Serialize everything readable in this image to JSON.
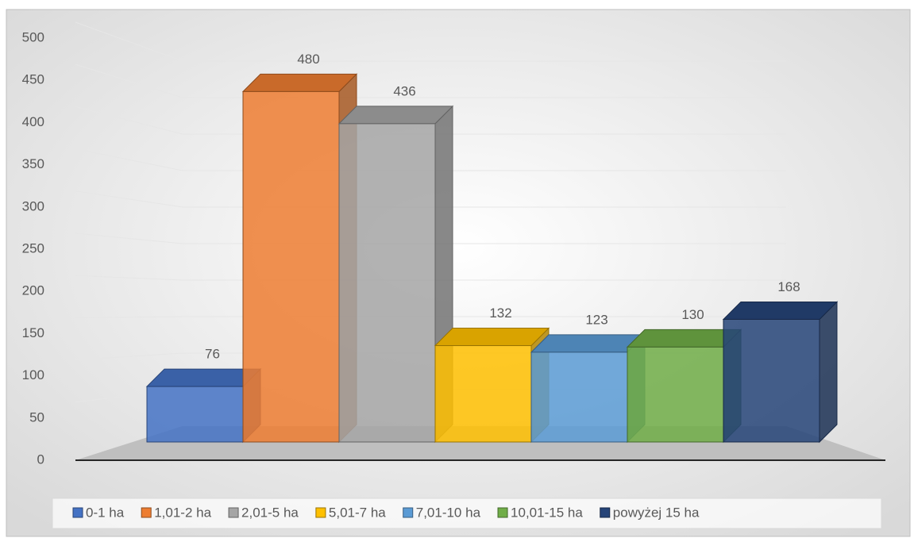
{
  "chart_data": {
    "type": "bar3d",
    "series": [
      {
        "name": "0-1 ha",
        "color": "#4472c4",
        "values": [
          76
        ]
      },
      {
        "name": "1,01-2 ha",
        "color": "#ed7d31",
        "values": [
          480
        ]
      },
      {
        "name": "2,01-5 ha",
        "color": "#a5a5a5",
        "values": [
          436
        ]
      },
      {
        "name": "5,01-7 ha",
        "color": "#ffc000",
        "values": [
          132
        ]
      },
      {
        "name": "7,01-10 ha",
        "color": "#5b9bd5",
        "values": [
          123
        ]
      },
      {
        "name": "10,01-15 ha",
        "color": "#70ad47",
        "values": [
          130
        ]
      },
      {
        "name": "powyżej 15 ha",
        "color": "#264478",
        "values": [
          168
        ]
      }
    ],
    "ylim": [
      0,
      500
    ],
    "yticks": [
      0,
      50,
      100,
      150,
      200,
      250,
      300,
      350,
      400,
      450,
      500
    ],
    "grid": true,
    "legend": "bottom"
  }
}
